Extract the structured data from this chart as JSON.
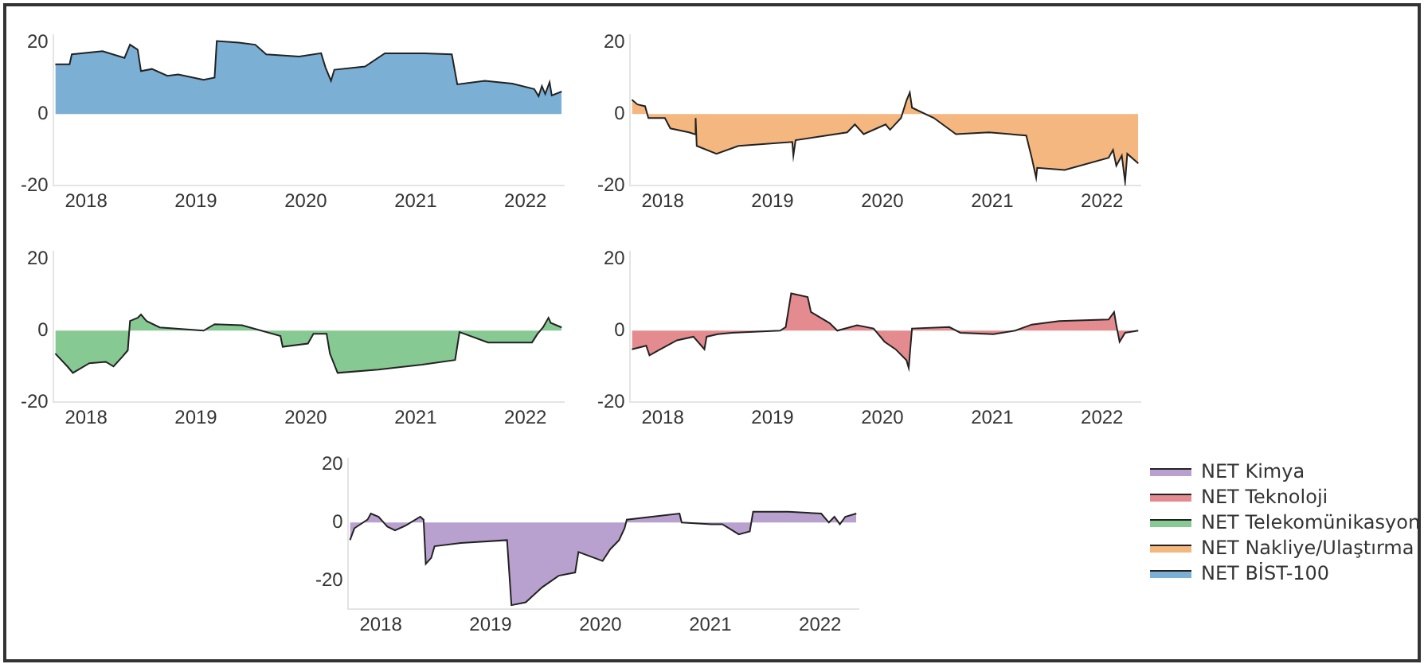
{
  "chart_data": [
    {
      "type": "area",
      "legend": "right",
      "xlim": [
        2017.7,
        2022.35
      ],
      "xticks": [
        2018,
        2019,
        2020,
        2021,
        2022
      ],
      "ylim": [
        -20,
        22
      ],
      "yticks": [
        -20,
        0,
        20
      ],
      "grid": false,
      "series": [
        {
          "name": "NET BİST-100",
          "color": "#7bafd4",
          "x": [
            2017.72,
            2017.85,
            2017.87,
            2018.15,
            2018.35,
            2018.4,
            2018.47,
            2018.5,
            2018.6,
            2018.74,
            2018.84,
            2019.07,
            2019.17,
            2019.19,
            2019.39,
            2019.54,
            2019.64,
            2019.94,
            2020.14,
            2020.18,
            2020.23,
            2020.26,
            2020.54,
            2020.72,
            2020.93,
            2021.08,
            2021.33,
            2021.38,
            2021.63,
            2021.88,
            2022.08,
            2022.12,
            2022.15,
            2022.18,
            2022.22,
            2022.24,
            2022.33
          ],
          "values": [
            13.9,
            13.9,
            16.7,
            17.6,
            15.7,
            19.4,
            18,
            12,
            12.6,
            10.7,
            11.1,
            9.6,
            10.2,
            20.4,
            20,
            19.4,
            16.7,
            16.1,
            17,
            13,
            9.3,
            12.4,
            13.3,
            17,
            17,
            17,
            16.7,
            8.3,
            9.3,
            8.5,
            7,
            5,
            7.8,
            5.6,
            8.9,
            5.2,
            6.3
          ]
        }
      ]
    },
    {
      "type": "area",
      "legend": "right",
      "xlim": [
        2017.7,
        2022.35
      ],
      "xticks": [
        2018,
        2019,
        2020,
        2021,
        2022
      ],
      "ylim": [
        -20,
        22
      ],
      "yticks": [
        -20,
        0,
        20
      ],
      "grid": false,
      "series": [
        {
          "name": "NET Nakliye/Ulaştırma",
          "color": "#f4b77f",
          "x": [
            2017.72,
            2017.77,
            2017.84,
            2017.87,
            2018.02,
            2018.07,
            2018.24,
            2018.29,
            2018.3,
            2018.31,
            2018.49,
            2018.69,
            2019.18,
            2019.19,
            2019.21,
            2019.68,
            2019.75,
            2019.83,
            2020.03,
            2020.07,
            2020.17,
            2020.22,
            2020.25,
            2020.27,
            2020.47,
            2020.67,
            2020.97,
            2021.31,
            2021.36,
            2021.4,
            2021.41,
            2021.66,
            2022.06,
            2022.1,
            2022.13,
            2022.18,
            2022.21,
            2022.23,
            2022.33
          ],
          "values": [
            4,
            2.7,
            2.2,
            -1.1,
            -1.1,
            -4,
            -5.1,
            -5.6,
            -1.1,
            -8.9,
            -11.1,
            -8.9,
            -7.8,
            -11.6,
            -7.3,
            -5.1,
            -2.9,
            -5.6,
            -2.9,
            -4.4,
            -1.1,
            3.8,
            6,
            1.8,
            -1.1,
            -5.6,
            -5.1,
            -6,
            -12.2,
            -17.8,
            -15,
            -15.6,
            -12.2,
            -10,
            -14.4,
            -11.6,
            -18.9,
            -11.1,
            -13.8
          ]
        }
      ]
    },
    {
      "type": "area",
      "legend": "right",
      "xlim": [
        2017.7,
        2022.35
      ],
      "xticks": [
        2018,
        2019,
        2020,
        2021,
        2022
      ],
      "ylim": [
        -20,
        22
      ],
      "yticks": [
        -20,
        0,
        20
      ],
      "grid": false,
      "series": [
        {
          "name": "NET Telekomünikasyon",
          "color": "#86c992",
          "x": [
            2017.72,
            2017.83,
            2017.88,
            2018.03,
            2018.18,
            2018.25,
            2018.33,
            2018.38,
            2018.4,
            2018.47,
            2018.5,
            2018.55,
            2018.67,
            2019.07,
            2019.17,
            2019.42,
            2019.77,
            2019.79,
            2020.02,
            2020.07,
            2020.19,
            2020.22,
            2020.29,
            2020.66,
            2021.06,
            2021.36,
            2021.4,
            2021.66,
            2022.06,
            2022.11,
            2022.16,
            2022.21,
            2022.23,
            2022.33
          ],
          "values": [
            -6.4,
            -10,
            -11.8,
            -9.1,
            -8.7,
            -10,
            -7.3,
            -5.5,
            2.7,
            3.6,
            4.5,
            2.7,
            0.9,
            0,
            1.8,
            1.5,
            -1.5,
            -4.5,
            -3.6,
            -0.9,
            -0.9,
            -6.4,
            -11.8,
            -10.9,
            -9.5,
            -8.2,
            -0.4,
            -3.3,
            -3.3,
            -0.9,
            0.9,
            3.6,
            2.2,
            0.9
          ]
        }
      ]
    },
    {
      "type": "area",
      "legend": "right",
      "xlim": [
        2017.7,
        2022.35
      ],
      "xticks": [
        2018,
        2019,
        2020,
        2021,
        2022
      ],
      "ylim": [
        -20,
        22
      ],
      "yticks": [
        -20,
        0,
        20
      ],
      "grid": false,
      "series": [
        {
          "name": "NET Teknoloji",
          "color": "#e38b8f",
          "x": [
            2017.72,
            2017.85,
            2017.88,
            2017.98,
            2018.13,
            2018.28,
            2018.38,
            2018.4,
            2018.5,
            2018.63,
            2019.07,
            2019.12,
            2019.17,
            2019.32,
            2019.35,
            2019.52,
            2019.59,
            2019.77,
            2019.92,
            2020.02,
            2020.12,
            2020.22,
            2020.24,
            2020.27,
            2020.61,
            2020.71,
            2021.01,
            2021.21,
            2021.36,
            2021.61,
            2022.06,
            2022.11,
            2022.13,
            2022.16,
            2022.21,
            2022.33
          ],
          "values": [
            -5.2,
            -4.2,
            -6.9,
            -5.2,
            -2.7,
            -1.7,
            -5.2,
            -1.7,
            -1,
            -0.6,
            0,
            1,
            10.4,
            9.4,
            5.2,
            2.1,
            0,
            1.5,
            0.6,
            -3.1,
            -5.2,
            -8.3,
            -10.4,
            0.6,
            1,
            -0.6,
            -1,
            0,
            1.7,
            2.7,
            3.1,
            5.2,
            1.5,
            -3.1,
            -0.6,
            0
          ]
        }
      ]
    },
    {
      "type": "area",
      "legend": "right",
      "xlim": [
        2017.7,
        2022.35
      ],
      "xticks": [
        2018,
        2019,
        2020,
        2021,
        2022
      ],
      "ylim": [
        -30,
        22
      ],
      "yticks": [
        -20,
        0,
        20
      ],
      "grid": false,
      "series": [
        {
          "name": "NET Kimya",
          "color": "#b9a1cf",
          "x": [
            2017.72,
            2017.76,
            2017.88,
            2017.91,
            2017.98,
            2018.06,
            2018.13,
            2018.23,
            2018.36,
            2018.39,
            2018.41,
            2018.46,
            2018.49,
            2018.73,
            2019.15,
            2019.19,
            2019.32,
            2019.47,
            2019.62,
            2019.77,
            2019.8,
            2020.02,
            2020.09,
            2020.17,
            2020.22,
            2020.24,
            2020.47,
            2020.72,
            2020.74,
            2021.01,
            2021.11,
            2021.26,
            2021.36,
            2021.39,
            2021.71,
            2022.01,
            2022.08,
            2022.13,
            2022.18,
            2022.23,
            2022.33
          ],
          "values": [
            -6.1,
            -2,
            1,
            3.1,
            2,
            -1.4,
            -2.7,
            -1,
            2,
            1,
            -14.3,
            -12.2,
            -8.2,
            -7.1,
            -6.1,
            -28.6,
            -27.6,
            -22.4,
            -18.4,
            -17.3,
            -10.2,
            -13.3,
            -9.2,
            -6.1,
            -2,
            1,
            2,
            3.1,
            0,
            -0.6,
            -0.6,
            -4.1,
            -3.1,
            3.7,
            3.7,
            3.1,
            0,
            2,
            -0.6,
            2,
            3.1
          ]
        }
      ]
    }
  ]
}
